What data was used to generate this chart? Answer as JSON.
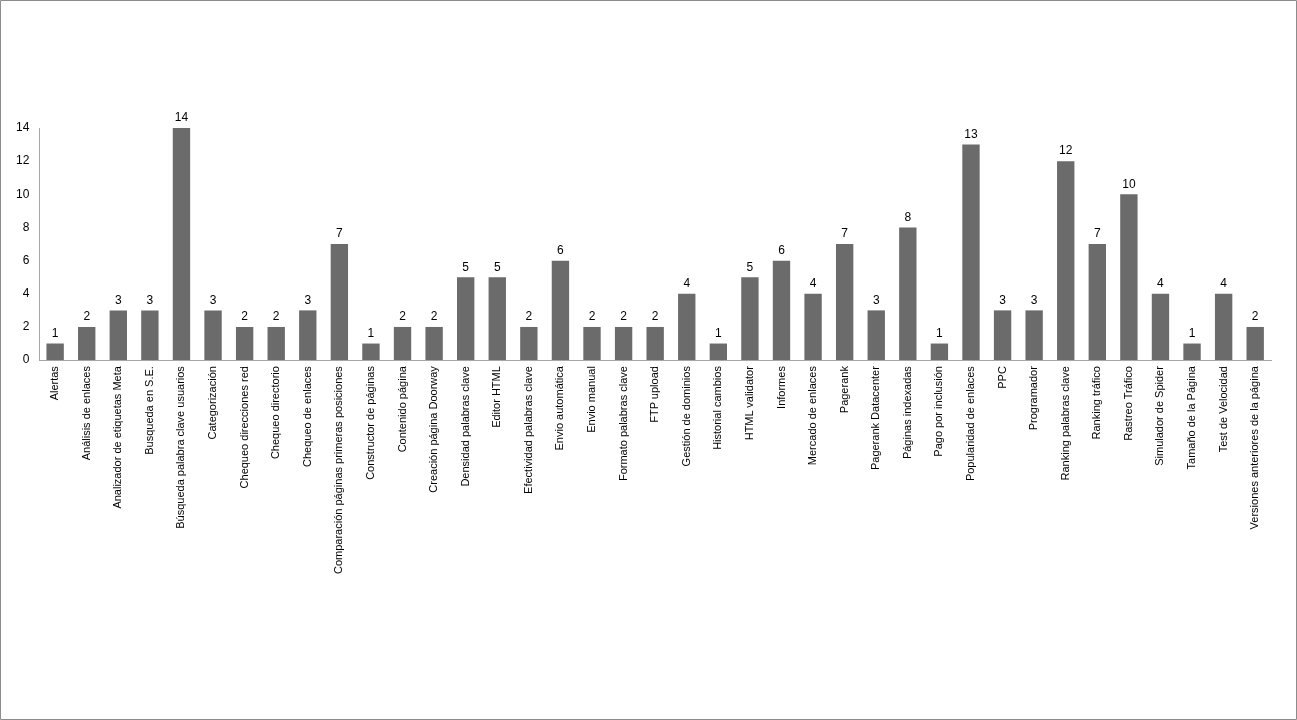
{
  "chart_data": {
    "type": "bar",
    "categories": [
      "Alertas",
      "Análisis de enlaces",
      "Analizador de etiquetas Meta",
      "Busqueda en S.E.",
      "Búsqueda palabra clave usuarios",
      "Categorización",
      "Chequeo direcciones red",
      "Chequeo directorio",
      "Chequeo de enlaces",
      "Comparación páginas primeras posiciones",
      "Constructor de páginas",
      "Contenido página",
      "Creación página Doorway",
      "Densidad palabras clave",
      "Editor HTML",
      "Efectividad palabras clave",
      "Envio automática",
      "Envio manual",
      "Formato palabras clave",
      "FTP upload",
      "Gestión de dominios",
      "Historial cambios",
      "HTML validator",
      "Informes",
      "Mercado de enlaces",
      "Pagerank",
      "Pagerank Datacenter",
      "Páginas indexadas",
      "Pago por inclusión",
      "Popularidad de enlaces",
      "PPC",
      "Programador",
      "Ranking palabras clave",
      "Ranking tráfico",
      "Rastreo Tráfico",
      "Simulador de Spider",
      "Tamaño de la Página",
      "Test de Velocidad",
      "Versiones anteriores de la página"
    ],
    "values": [
      1,
      2,
      3,
      3,
      14,
      3,
      2,
      2,
      3,
      7,
      1,
      2,
      2,
      5,
      5,
      2,
      6,
      2,
      2,
      2,
      4,
      1,
      5,
      6,
      4,
      7,
      3,
      8,
      1,
      13,
      3,
      3,
      12,
      7,
      10,
      4,
      1,
      4,
      2
    ],
    "color": "#6b6b6b",
    "ylim": [
      0,
      14
    ],
    "yticks": [
      0,
      2,
      4,
      6,
      8,
      10,
      12,
      14
    ],
    "data_labels": true
  }
}
